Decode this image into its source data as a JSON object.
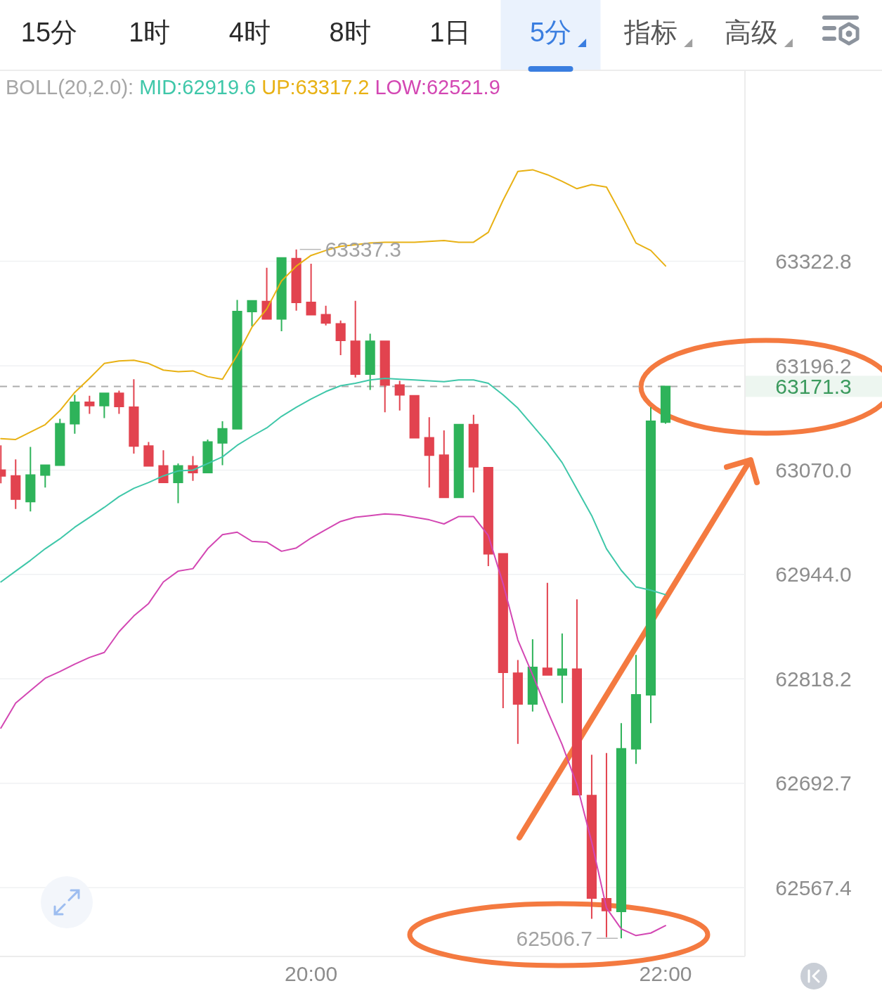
{
  "chart_data": {
    "type": "candlestick",
    "x": [
      18.25,
      18.3333,
      18.4167,
      18.5,
      18.5833,
      18.6667,
      18.75,
      18.8333,
      18.9167,
      19,
      19.0833,
      19.1667,
      19.25,
      19.3333,
      19.4167,
      19.5,
      19.5833,
      19.6667,
      19.75,
      19.8333,
      19.9167,
      20,
      20.0833,
      20.1667,
      20.25,
      20.3333,
      20.4167,
      20.5,
      20.5833,
      20.6667,
      20.75,
      20.8333,
      20.9167,
      21,
      21.0833,
      21.1667,
      21.25,
      21.3333,
      21.4167,
      21.5,
      21.5833,
      21.6667,
      21.75,
      21.8333,
      21.9167,
      22
    ],
    "ohlc": [
      [
        63070,
        63100,
        63054,
        63063
      ],
      [
        63063,
        63083,
        63023,
        63035
      ],
      [
        63032,
        63098,
        63020,
        63064
      ],
      [
        63064,
        63076,
        63049,
        63076
      ],
      [
        63076,
        63132,
        63076,
        63126
      ],
      [
        63126,
        63161,
        63114,
        63152
      ],
      [
        63152,
        63160,
        63138,
        63148
      ],
      [
        63148,
        63163,
        63133,
        63163
      ],
      [
        63163,
        63166,
        63138,
        63147
      ],
      [
        63146,
        63180,
        63090,
        63099
      ],
      [
        63099,
        63104,
        63075,
        63075
      ],
      [
        63075,
        63094,
        63055,
        63055
      ],
      [
        63055,
        63078,
        63030,
        63075
      ],
      [
        63075,
        63087,
        63057,
        63067
      ],
      [
        63067,
        63107,
        63067,
        63104
      ],
      [
        63103,
        63129,
        63076,
        63120
      ],
      [
        63120,
        63276,
        63120,
        63262
      ],
      [
        63262,
        63275,
        63244,
        63275
      ],
      [
        63274,
        63315,
        63253,
        63253
      ],
      [
        63253,
        63327,
        63238,
        63327
      ],
      [
        63326,
        63337.3,
        63263,
        63273
      ],
      [
        63273,
        63320,
        63258,
        63258
      ],
      [
        63258,
        63269,
        63245,
        63248
      ],
      [
        63247,
        63251,
        63209,
        63227
      ],
      [
        63226,
        63275,
        63182,
        63186
      ],
      [
        63186,
        63235,
        63167,
        63226
      ],
      [
        63226,
        63226,
        63140,
        63173
      ],
      [
        63173,
        63178,
        63142,
        63161
      ],
      [
        63160,
        63160,
        63109,
        63109
      ],
      [
        63109,
        63134,
        63049,
        63088
      ],
      [
        63088,
        63118,
        63037,
        63037
      ],
      [
        63037,
        63125,
        63037,
        63125
      ],
      [
        63125,
        63137,
        63043,
        63074
      ],
      [
        63073,
        63073,
        62954,
        62969
      ],
      [
        62969,
        62969,
        62783,
        62826
      ],
      [
        62825,
        62841,
        62740,
        62788
      ],
      [
        62788,
        62866,
        62779,
        62832
      ],
      [
        62831,
        62934,
        62823,
        62823
      ],
      [
        62823,
        62873,
        62789,
        62830
      ],
      [
        62830,
        62914,
        62679,
        62679
      ],
      [
        62678,
        62727,
        62530,
        62555
      ],
      [
        62554,
        62729,
        62508,
        62540
      ],
      [
        62539,
        62765,
        62506.7,
        62734
      ],
      [
        62734,
        62847,
        62716,
        62799
      ],
      [
        62799,
        63146,
        62765,
        63129
      ],
      [
        63128,
        63171.3,
        63126,
        63171.3
      ]
    ],
    "colors": [
      "#e2434f",
      "#e2434f",
      "#2eb35a",
      "#2eb35a",
      "#2eb35a",
      "#2eb35a",
      "#e2434f",
      "#2eb35a",
      "#e2434f",
      "#e2434f",
      "#e2434f",
      "#e2434f",
      "#2eb35a",
      "#e2434f",
      "#2eb35a",
      "#2eb35a",
      "#2eb35a",
      "#2eb35a",
      "#e2434f",
      "#2eb35a",
      "#e2434f",
      "#e2434f",
      "#e2434f",
      "#e2434f",
      "#e2434f",
      "#2eb35a",
      "#e2434f",
      "#e2434f",
      "#e2434f",
      "#e2434f",
      "#e2434f",
      "#2eb35a",
      "#e2434f",
      "#e2434f",
      "#e2434f",
      "#e2434f",
      "#2eb35a",
      "#e2434f",
      "#2eb35a",
      "#e2434f",
      "#e2434f",
      "#e2434f",
      "#2eb35a",
      "#2eb35a",
      "#2eb35a",
      "#2eb35a"
    ],
    "series": [
      {
        "name": "MID:62919.6",
        "type": "line",
        "color": "#3fc7a9",
        "values": [
          62935,
          62948,
          62961,
          62975,
          62987,
          63001,
          63013,
          63025,
          63038,
          63048,
          63055,
          63063,
          63069,
          63070,
          63078,
          63086,
          63100,
          63111,
          63121,
          63135,
          63146,
          63156,
          63165,
          63172,
          63175,
          63179,
          63181,
          63180,
          63179,
          63178,
          63177,
          63179,
          63179,
          63175,
          63161,
          63145,
          63124,
          63103,
          63079,
          63047,
          63015,
          62975,
          62949,
          62929,
          62925,
          62919.6
        ]
      },
      {
        "name": "UP:63317.2",
        "type": "line",
        "color": "#e8b114",
        "values": [
          63108,
          63107,
          63116,
          63125,
          63142,
          63164,
          63181,
          63199,
          63202,
          63203,
          63199,
          63191,
          63189,
          63190,
          63183,
          63180,
          63209,
          63243,
          63265,
          63299,
          63317,
          63330,
          63336,
          63341,
          63343,
          63345,
          63346,
          63346,
          63346,
          63347,
          63348,
          63346,
          63346,
          63358,
          63397,
          63432,
          63434,
          63428,
          63420,
          63411,
          63416,
          63413,
          63380,
          63345,
          63336,
          63317.2
        ]
      },
      {
        "name": "LOW:62521.9",
        "type": "line",
        "color": "#d347b3",
        "values": [
          62759,
          62789,
          62804,
          62819,
          62827,
          62836,
          62844,
          62850,
          62875,
          62894,
          62909,
          62935,
          62948,
          62951,
          62975,
          62992,
          62995,
          62984,
          62983,
          62972,
          62976,
          62988,
          62998,
          63008,
          63013,
          63015,
          63017,
          63016,
          63013,
          63010,
          63005,
          63014,
          63014,
          62991,
          62933,
          62865,
          62823,
          62780,
          62739,
          62691,
          62622,
          62543,
          62518,
          62510,
          62513,
          62521.9
        ]
      }
    ],
    "legend_title": "BOLL(20,2.0):",
    "legend": "top left",
    "log": true,
    "ylim": [
      62485,
      63555
    ],
    "yticks": [
      62567.4,
      62692.7,
      62818.2,
      {
        "value": 62944,
        "label": "62944.0"
      },
      {
        "value": 63070,
        "label": "63070.0"
      },
      63196.2,
      63322.8
    ],
    "xlim": [
      18.245,
      22.448
    ],
    "xticks": [
      {
        "value": 20,
        "label": "20:00"
      },
      {
        "value": 22,
        "label": "22:00"
      }
    ],
    "grid": "y",
    "ref_lines": [
      {
        "axis": "y",
        "value": 63171.3,
        "color": "#adadad",
        "line_style": "dashed"
      }
    ],
    "annotations": [
      "15分",
      "1时",
      "4时",
      "8时",
      "1日",
      "5分",
      "指标",
      "高级",
      {
        "text": "63337.3",
        "x": 19.9167,
        "y": 63337.3
      },
      {
        "text": "62506.7",
        "x": 21.75,
        "y": 62506.7
      },
      "63171.3"
    ]
  }
}
